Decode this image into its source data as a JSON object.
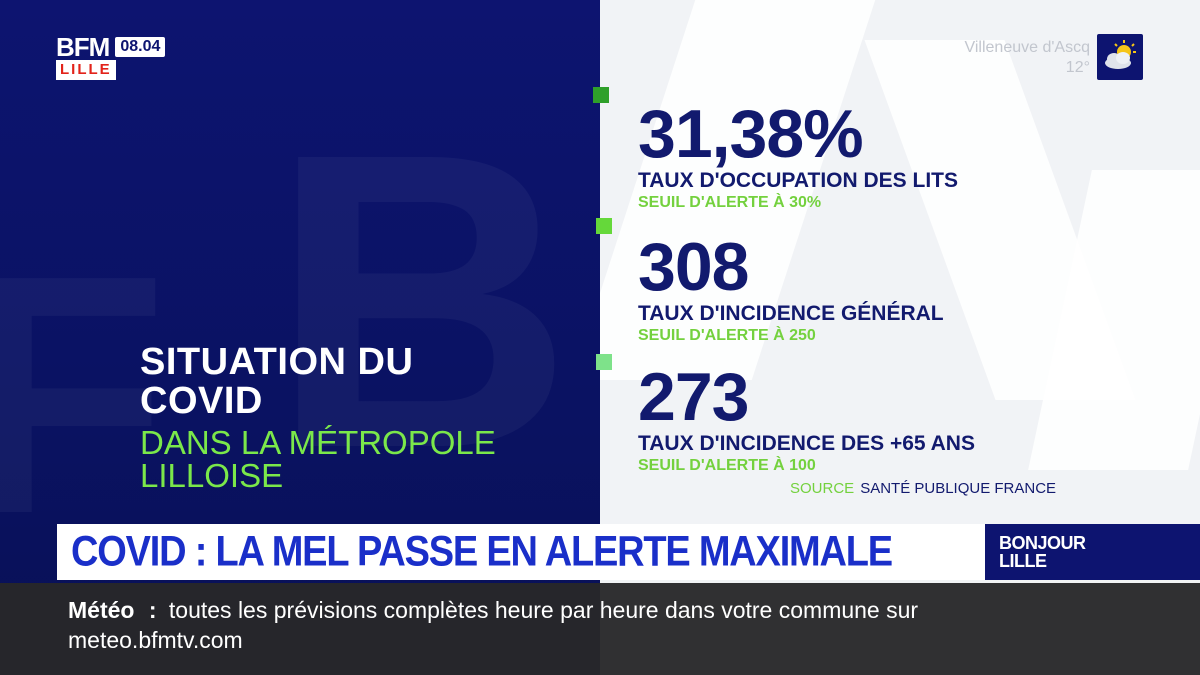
{
  "brand": {
    "name": "BFM",
    "city": "LILLE",
    "time": "08.04"
  },
  "weather": {
    "location": "Villeneuve d'Ascq",
    "temperature": "12°",
    "icon": "sun-cloud-icon"
  },
  "topic": {
    "title_line1": "SITUATION DU",
    "title_line2": "COVID",
    "subtitle_line1": "DANS LA MÉTROPOLE",
    "subtitle_line2": "LILLOISE"
  },
  "stats": [
    {
      "value": "31,38%",
      "label": "TAUX D'OCCUPATION DES LITS",
      "threshold": "SEUIL D'ALERTE À 30%"
    },
    {
      "value": "308",
      "label": "TAUX D'INCIDENCE GÉNÉRAL",
      "threshold": "SEUIL D'ALERTE À 250"
    },
    {
      "value": "273",
      "label": "TAUX D'INCIDENCE DES +65 ANS",
      "threshold": "SEUIL D'ALERTE À 100"
    }
  ],
  "source": {
    "label": "SOURCE",
    "value": "SANTÉ PUBLIQUE FRANCE"
  },
  "headline": "COVID : LA MEL PASSE EN ALERTE MAXIMALE",
  "show": {
    "line1": "BONJOUR",
    "line2": "LILLE"
  },
  "ticker": {
    "label": "Météo",
    "separator": ":",
    "text": "toutes les prévisions complètes heure par heure dans votre commune sur meteo.bfmtv.com"
  },
  "colors": {
    "navy": "#0d1470",
    "accent_green": "#74d13e",
    "headline_blue": "#1a2fc9",
    "stat_navy": "#121a6e"
  }
}
